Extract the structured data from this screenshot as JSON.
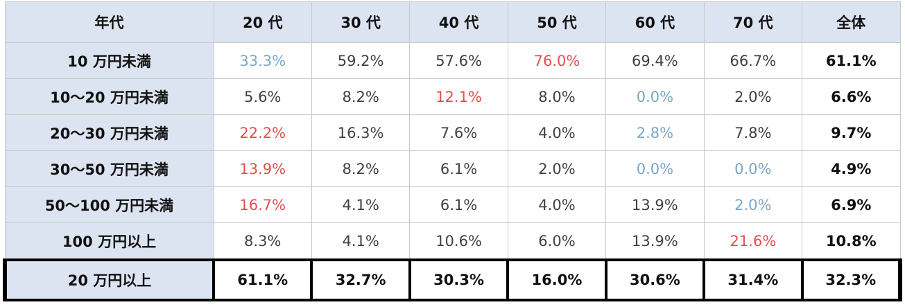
{
  "table": {
    "header": [
      "年代",
      "20 代",
      "30 代",
      "40 代",
      "50 代",
      "60 代",
      "70 代",
      "全体"
    ],
    "rows": [
      [
        "10 万円未満",
        "33.3%",
        "59.2%",
        "57.6%",
        "76.0%",
        "69.4%",
        "66.7%",
        "61.1%"
      ],
      [
        "10～20 万円未満",
        "5.6%",
        "8.2%",
        "12.1%",
        "8.0%",
        "0.0%",
        "2.0%",
        "6.6%"
      ],
      [
        "20～30 万円未満",
        "22.2%",
        "16.3%",
        "7.6%",
        "4.0%",
        "2.8%",
        "7.8%",
        "9.7%"
      ],
      [
        "30～50 万円未満",
        "13.9%",
        "8.2%",
        "6.1%",
        "2.0%",
        "0.0%",
        "0.0%",
        "4.9%"
      ],
      [
        "50～100 万円未満",
        "16.7%",
        "4.1%",
        "6.1%",
        "4.0%",
        "13.9%",
        "2.0%",
        "6.9%"
      ],
      [
        "100 万円以上",
        "8.3%",
        "4.1%",
        "10.6%",
        "6.0%",
        "13.9%",
        "21.6%",
        "10.8%"
      ],
      [
        "20 万円以上",
        "61.1%",
        "32.7%",
        "30.3%",
        "16.0%",
        "30.6%",
        "31.4%",
        "32.3%"
      ]
    ]
  }
}
